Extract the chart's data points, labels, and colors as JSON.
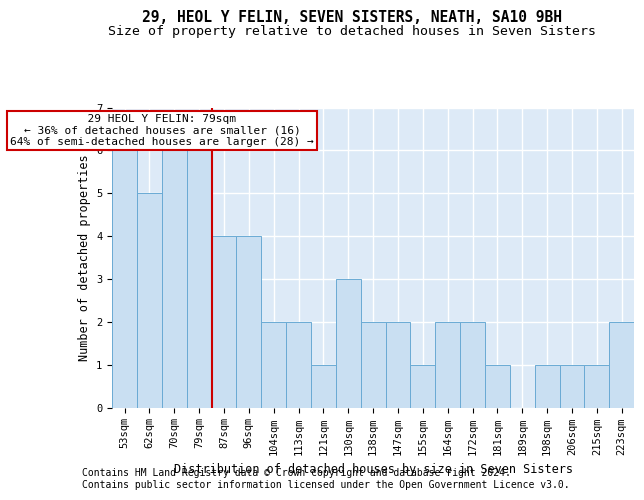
{
  "title": "29, HEOL Y FELIN, SEVEN SISTERS, NEATH, SA10 9BH",
  "subtitle": "Size of property relative to detached houses in Seven Sisters",
  "xlabel": "Distribution of detached houses by size in Seven Sisters",
  "ylabel": "Number of detached properties",
  "categories": [
    "53sqm",
    "62sqm",
    "70sqm",
    "79sqm",
    "87sqm",
    "96sqm",
    "104sqm",
    "113sqm",
    "121sqm",
    "130sqm",
    "138sqm",
    "147sqm",
    "155sqm",
    "164sqm",
    "172sqm",
    "181sqm",
    "189sqm",
    "198sqm",
    "206sqm",
    "215sqm",
    "223sqm"
  ],
  "values": [
    6,
    5,
    6,
    6,
    4,
    4,
    2,
    2,
    1,
    3,
    2,
    2,
    1,
    2,
    2,
    1,
    0,
    1,
    1,
    1,
    2
  ],
  "bar_color": "#c9dff2",
  "bar_edge_color": "#6aaad4",
  "subject_index": 3,
  "annotation_line1": "  29 HEOL Y FELIN: 79sqm  ",
  "annotation_line2": "← 36% of detached houses are smaller (16)",
  "annotation_line3": "64% of semi-detached houses are larger (28) →",
  "vline_color": "#cc0000",
  "annotation_box_edge_color": "#cc0000",
  "ylim": [
    0,
    7
  ],
  "yticks": [
    0,
    1,
    2,
    3,
    4,
    5,
    6,
    7
  ],
  "footer_line1": "Contains HM Land Registry data © Crown copyright and database right 2024.",
  "footer_line2": "Contains public sector information licensed under the Open Government Licence v3.0.",
  "title_fontsize": 10.5,
  "subtitle_fontsize": 9.5,
  "axis_label_fontsize": 8.5,
  "tick_fontsize": 7.5,
  "annotation_fontsize": 8,
  "footer_fontsize": 7,
  "plot_bg_color": "#ddeaf7",
  "fig_bg_color": "#ffffff",
  "grid_color": "#ffffff"
}
